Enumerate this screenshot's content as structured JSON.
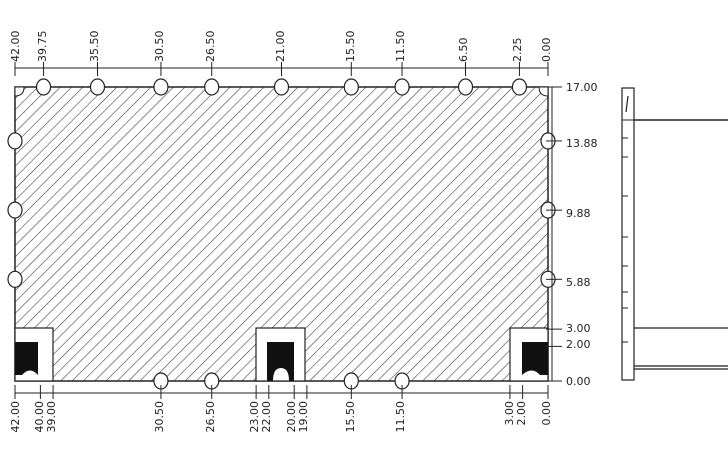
{
  "drawing": {
    "top_labels": [
      "42.00",
      "39.75",
      "35.50",
      "30.50",
      "26.50",
      "21.00",
      "15.50",
      "11.50",
      "6.50",
      "2.25",
      "0.00"
    ],
    "bottom_labels": [
      "42.00",
      "40.00",
      "39.00",
      "30.50",
      "26.50",
      "23.00",
      "22.00",
      "20.00",
      "19.00",
      "15.50",
      "11.50",
      "3.00",
      "2.00",
      "0.00"
    ],
    "right_labels": [
      "17.00",
      "13.88",
      "9.88",
      "5.88",
      "3.00",
      "2.00",
      "0.00"
    ],
    "top_notch_positions": [
      39.75,
      35.5,
      30.5,
      26.5,
      21.0,
      15.5,
      11.5,
      6.5,
      2.25
    ],
    "bottom_notch_positions": [
      30.5,
      26.5,
      15.5,
      11.5
    ],
    "side_notch_heights": [
      13.88,
      9.88,
      5.88
    ],
    "hatch": "diagonal"
  }
}
